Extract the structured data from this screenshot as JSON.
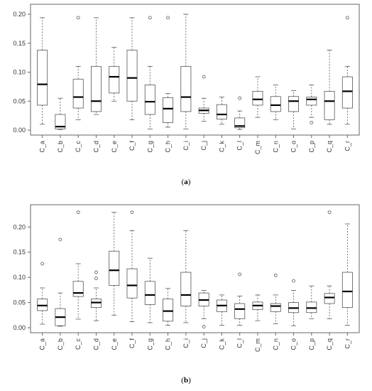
{
  "chart_data": [
    {
      "type": "box",
      "panel_label": "a",
      "categories": [
        "C_a",
        "C_b",
        "C_c",
        "C_d",
        "C_e",
        "C_f",
        "C_g",
        "C_h",
        "C_i",
        "C_j",
        "C_k",
        "C_l",
        "C_m",
        "C_n",
        "C_o",
        "C_p",
        "C_q",
        "C_r"
      ],
      "ylim": [
        0,
        0.2
      ],
      "yticks": [
        "0.00",
        "0.05",
        "0.10",
        "0.15",
        "0.20"
      ],
      "boxes": [
        {
          "min": 0.01,
          "q1": 0.043,
          "median": 0.079,
          "q3": 0.138,
          "max": 0.194,
          "outliers": []
        },
        {
          "min": 0.001,
          "q1": 0.002,
          "median": 0.006,
          "q3": 0.027,
          "max": 0.055,
          "outliers": []
        },
        {
          "min": 0.018,
          "q1": 0.038,
          "median": 0.057,
          "q3": 0.088,
          "max": 0.11,
          "outliers": [
            0.194
          ]
        },
        {
          "min": 0.027,
          "q1": 0.032,
          "median": 0.05,
          "q3": 0.11,
          "max": 0.194,
          "outliers": []
        },
        {
          "min": 0.05,
          "q1": 0.064,
          "median": 0.092,
          "q3": 0.11,
          "max": 0.143,
          "outliers": []
        },
        {
          "min": 0.018,
          "q1": 0.05,
          "median": 0.09,
          "q3": 0.138,
          "max": 0.194,
          "outliers": []
        },
        {
          "min": 0.002,
          "q1": 0.027,
          "median": 0.049,
          "q3": 0.078,
          "max": 0.11,
          "outliers": [
            0.194
          ]
        },
        {
          "min": 0.005,
          "q1": 0.013,
          "median": 0.037,
          "q3": 0.056,
          "max": 0.063,
          "outliers": [
            0.194
          ]
        },
        {
          "min": 0.002,
          "q1": 0.032,
          "median": 0.057,
          "q3": 0.11,
          "max": 0.2,
          "outliers": []
        },
        {
          "min": 0.015,
          "q1": 0.029,
          "median": 0.034,
          "q3": 0.038,
          "max": 0.055,
          "outliers": [
            0.092
          ]
        },
        {
          "min": 0.01,
          "q1": 0.019,
          "median": 0.027,
          "q3": 0.044,
          "max": 0.057,
          "outliers": []
        },
        {
          "min": 0.001,
          "q1": 0.004,
          "median": 0.007,
          "q3": 0.021,
          "max": 0.033,
          "outliers": [
            0.055
          ]
        },
        {
          "min": 0.022,
          "q1": 0.043,
          "median": 0.053,
          "q3": 0.067,
          "max": 0.092,
          "outliers": []
        },
        {
          "min": 0.018,
          "q1": 0.032,
          "median": 0.043,
          "q3": 0.058,
          "max": 0.078,
          "outliers": []
        },
        {
          "min": 0.002,
          "q1": 0.032,
          "median": 0.05,
          "q3": 0.058,
          "max": 0.068,
          "outliers": []
        },
        {
          "min": 0.022,
          "q1": 0.043,
          "median": 0.053,
          "q3": 0.057,
          "max": 0.078,
          "outliers": [
            0.013
          ]
        },
        {
          "min": 0.01,
          "q1": 0.018,
          "median": 0.05,
          "q3": 0.067,
          "max": 0.138,
          "outliers": []
        },
        {
          "min": 0.01,
          "q1": 0.038,
          "median": 0.067,
          "q3": 0.092,
          "max": 0.11,
          "outliers": [
            0.194
          ]
        }
      ]
    },
    {
      "type": "box",
      "panel_label": "b",
      "categories": [
        "C_a",
        "C_b",
        "C_c",
        "C_d",
        "C_e",
        "C_f",
        "C_g",
        "C_h",
        "C_i",
        "C_j",
        "C_k",
        "C_l",
        "C_m",
        "C_n",
        "C_o",
        "C_p",
        "C_q",
        "C_r"
      ],
      "ylim": [
        0,
        0.23
      ],
      "yticks": [
        "0.00",
        "0.05",
        "0.10",
        "0.15",
        "0.20"
      ],
      "boxes": [
        {
          "min": 0.007,
          "q1": 0.034,
          "median": 0.044,
          "q3": 0.057,
          "max": 0.079,
          "outliers": [
            0.127
          ]
        },
        {
          "min": 0.003,
          "q1": 0.004,
          "median": 0.021,
          "q3": 0.038,
          "max": 0.069,
          "outliers": [
            0.175
          ]
        },
        {
          "min": 0.017,
          "q1": 0.062,
          "median": 0.069,
          "q3": 0.092,
          "max": 0.127,
          "outliers": [
            0.229
          ]
        },
        {
          "min": 0.014,
          "q1": 0.04,
          "median": 0.05,
          "q3": 0.057,
          "max": 0.079,
          "outliers": [
            0.098,
            0.11
          ]
        },
        {
          "min": 0.025,
          "q1": 0.084,
          "median": 0.114,
          "q3": 0.152,
          "max": 0.229,
          "outliers": []
        },
        {
          "min": 0.012,
          "q1": 0.059,
          "median": 0.084,
          "q3": 0.117,
          "max": 0.193,
          "outliers": [
            0.229
          ]
        },
        {
          "min": 0.01,
          "q1": 0.046,
          "median": 0.065,
          "q3": 0.092,
          "max": 0.138,
          "outliers": []
        },
        {
          "min": 0.005,
          "q1": 0.013,
          "median": 0.033,
          "q3": 0.057,
          "max": 0.078,
          "outliers": []
        },
        {
          "min": 0.01,
          "q1": 0.043,
          "median": 0.065,
          "q3": 0.11,
          "max": 0.193,
          "outliers": []
        },
        {
          "min": 0.018,
          "q1": 0.043,
          "median": 0.055,
          "q3": 0.069,
          "max": 0.074,
          "outliers": [
            0.002
          ]
        },
        {
          "min": 0.005,
          "q1": 0.032,
          "median": 0.044,
          "q3": 0.055,
          "max": 0.065,
          "outliers": []
        },
        {
          "min": 0.005,
          "q1": 0.018,
          "median": 0.037,
          "q3": 0.048,
          "max": 0.063,
          "outliers": [
            0.106
          ]
        },
        {
          "min": 0.014,
          "q1": 0.036,
          "median": 0.044,
          "q3": 0.051,
          "max": 0.065,
          "outliers": []
        },
        {
          "min": 0.008,
          "q1": 0.032,
          "median": 0.043,
          "q3": 0.048,
          "max": 0.065,
          "outliers": [
            0.104
          ]
        },
        {
          "min": 0.004,
          "q1": 0.03,
          "median": 0.039,
          "q3": 0.05,
          "max": 0.074,
          "outliers": [
            0.093
          ]
        },
        {
          "min": 0.018,
          "q1": 0.03,
          "median": 0.039,
          "q3": 0.051,
          "max": 0.083,
          "outliers": []
        },
        {
          "min": 0.018,
          "q1": 0.048,
          "median": 0.06,
          "q3": 0.068,
          "max": 0.083,
          "outliers": [
            0.229
          ]
        },
        {
          "min": 0.005,
          "q1": 0.04,
          "median": 0.072,
          "q3": 0.11,
          "max": 0.206,
          "outliers": []
        }
      ]
    }
  ]
}
